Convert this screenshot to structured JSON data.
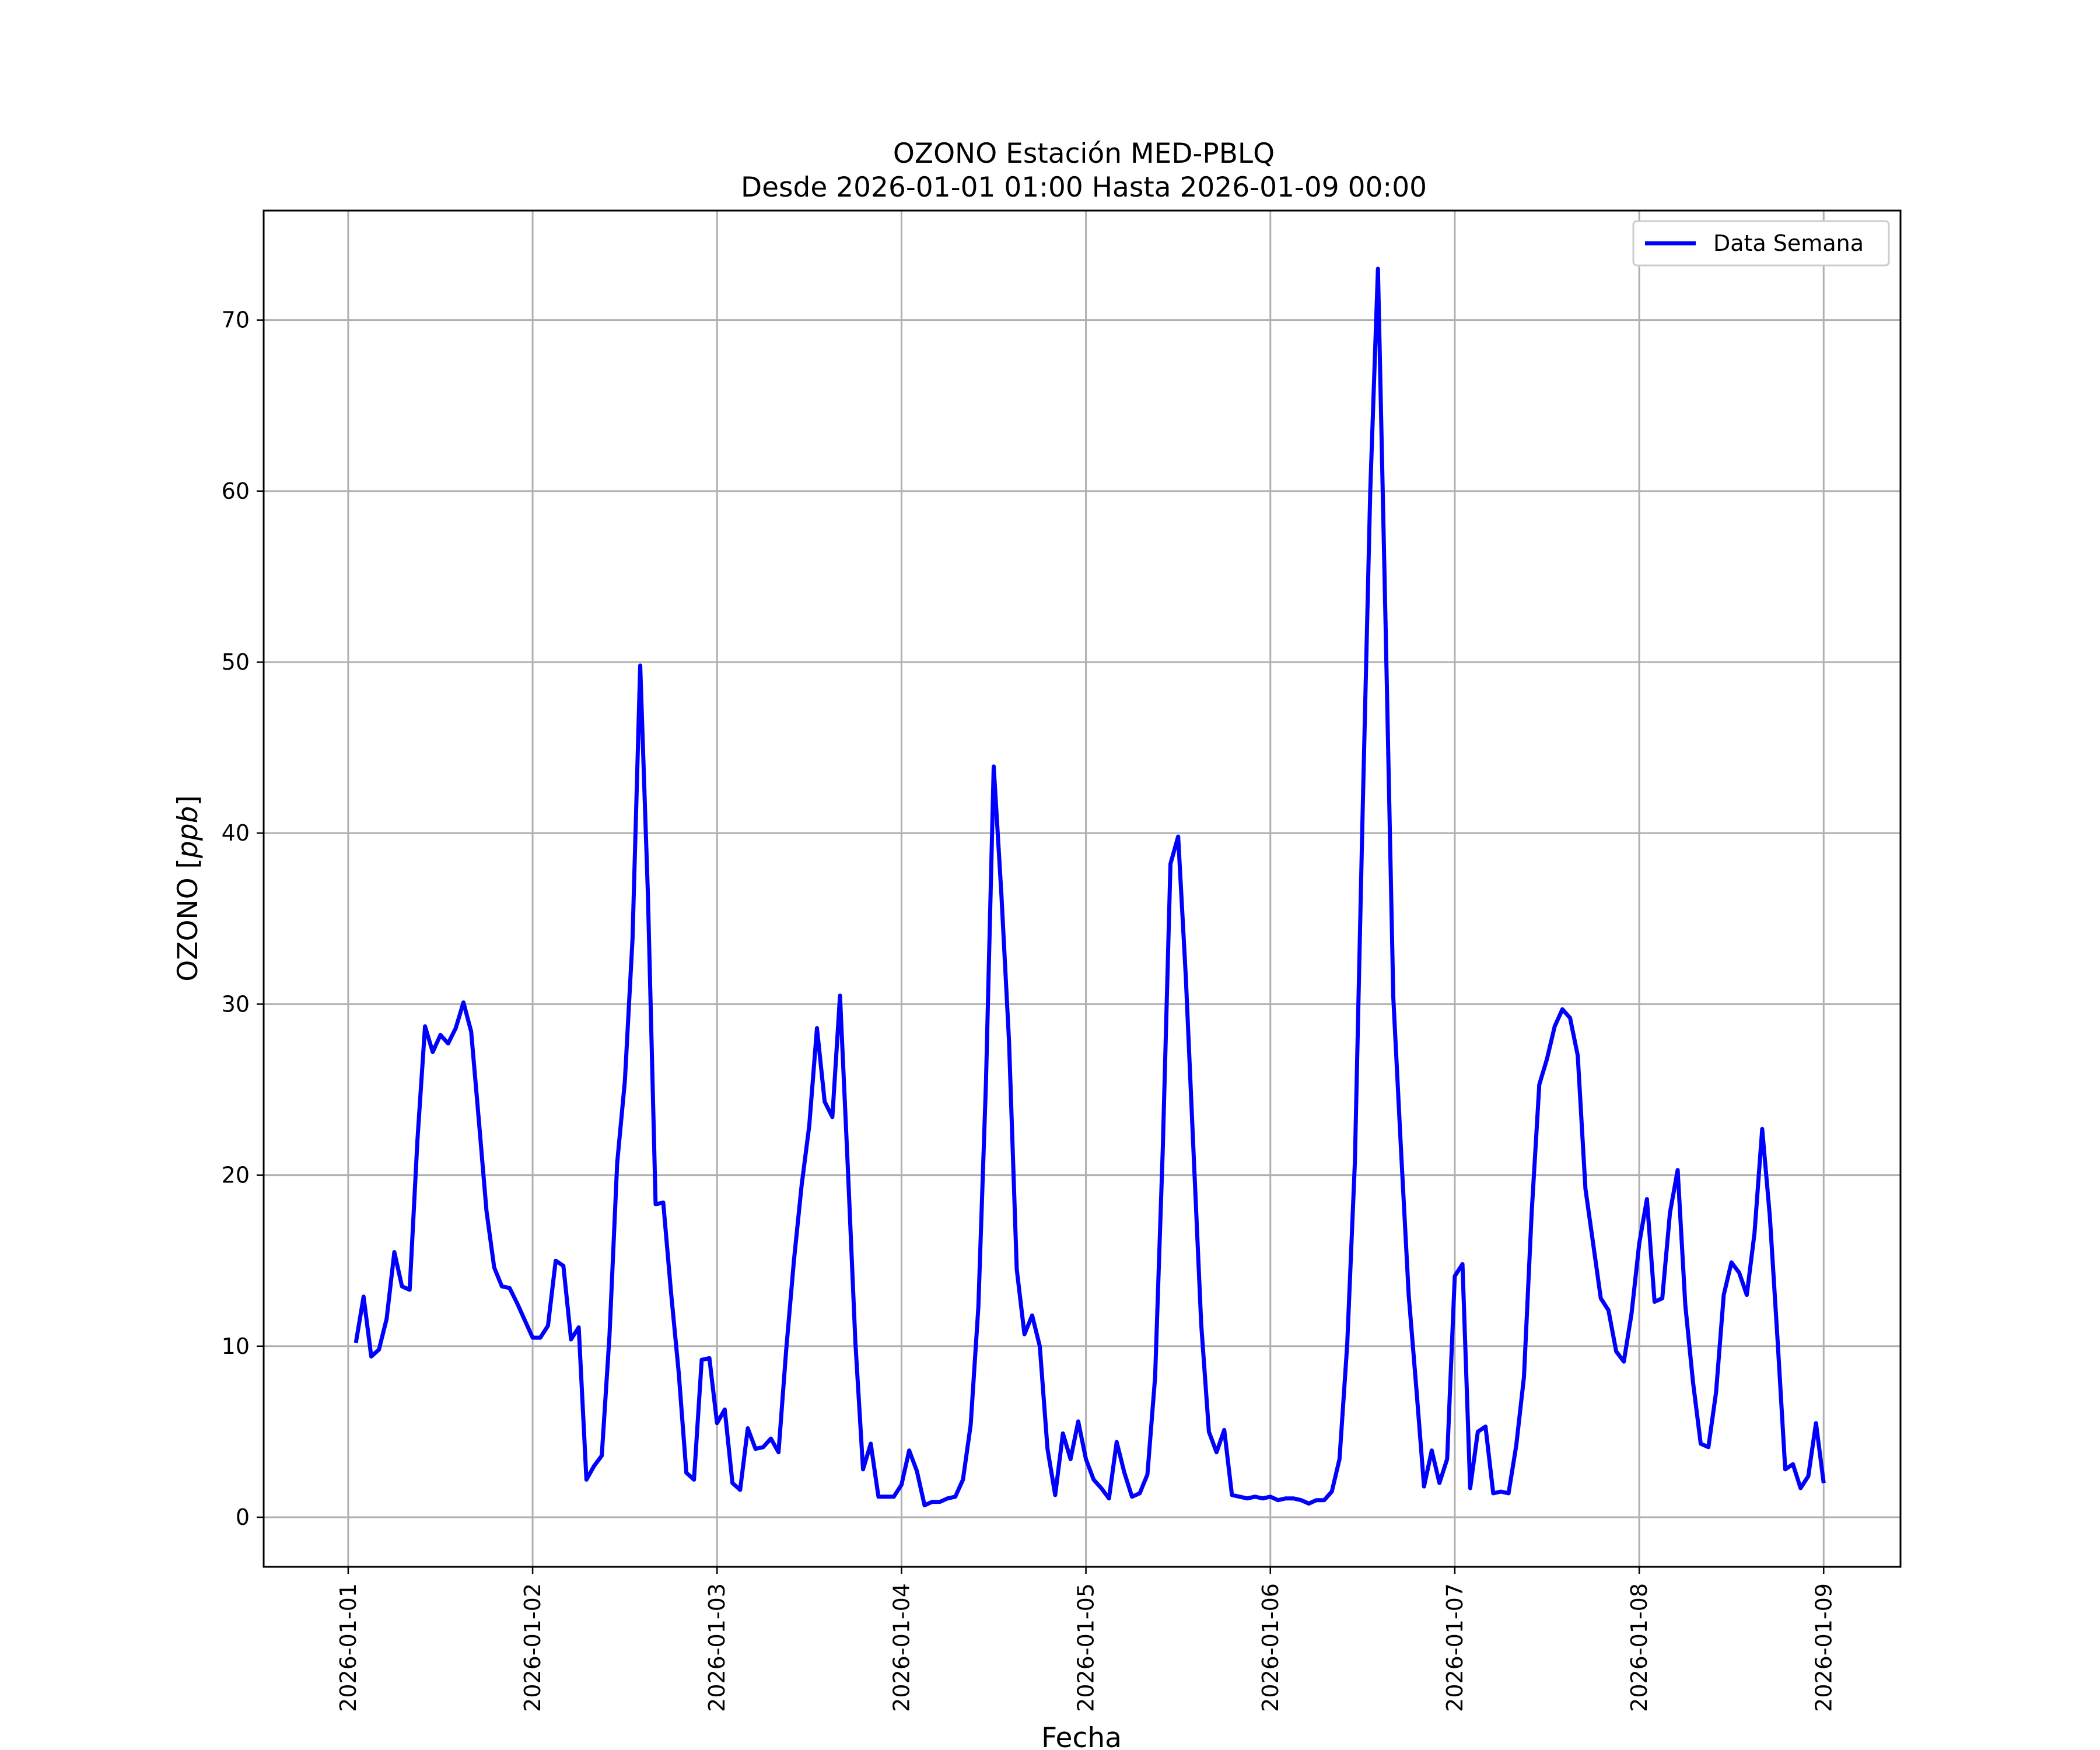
{
  "chart_data": {
    "type": "line",
    "title": "OZONO Estación MED-PBLQ",
    "subtitle": "Desde 2026-01-01 01:00 Hasta 2026-01-09 00:00",
    "xlabel": "Fecha",
    "ylabel": "OZONO [ppb]",
    "xlim": [
      "2025-12-31 13:00",
      "2026-01-09 10:00"
    ],
    "ylim": [
      -2.9,
      76.4
    ],
    "x_ticks": [
      "2026-01-01",
      "2026-01-02",
      "2026-01-03",
      "2026-01-04",
      "2026-01-05",
      "2026-01-06",
      "2026-01-07",
      "2026-01-08",
      "2026-01-09"
    ],
    "y_ticks": [
      0,
      10,
      20,
      30,
      40,
      50,
      60,
      70
    ],
    "grid": true,
    "legend": {
      "position": "top-right",
      "entries": [
        "Data Semana"
      ]
    },
    "series": [
      {
        "name": "Data Semana",
        "color": "#0000ff",
        "points": [
          [
            "2026-01-01 01:00",
            10.2
          ],
          [
            "2026-01-01 02:00",
            12.9
          ],
          [
            "2026-01-01 03:00",
            9.4
          ],
          [
            "2026-01-01 04:00",
            9.8
          ],
          [
            "2026-01-01 05:00",
            11.6
          ],
          [
            "2026-01-01 06:00",
            15.5
          ],
          [
            "2026-01-01 07:00",
            13.5
          ],
          [
            "2026-01-01 08:00",
            13.3
          ],
          [
            "2026-01-01 09:00",
            22.0
          ],
          [
            "2026-01-01 10:00",
            28.7
          ],
          [
            "2026-01-01 11:00",
            27.2
          ],
          [
            "2026-01-01 12:00",
            28.2
          ],
          [
            "2026-01-01 13:00",
            27.7
          ],
          [
            "2026-01-01 14:00",
            28.6
          ],
          [
            "2026-01-01 15:00",
            30.1
          ],
          [
            "2026-01-01 16:00",
            28.4
          ],
          [
            "2026-01-01 17:00",
            23.2
          ],
          [
            "2026-01-01 18:00",
            17.9
          ],
          [
            "2026-01-01 19:00",
            14.6
          ],
          [
            "2026-01-01 20:00",
            13.5
          ],
          [
            "2026-01-01 21:00",
            13.4
          ],
          [
            "2026-01-01 22:00",
            12.5
          ],
          [
            "2026-01-01 23:00",
            11.5
          ],
          [
            "2026-01-02 00:00",
            10.5
          ],
          [
            "2026-01-02 01:00",
            10.5
          ],
          [
            "2026-01-02 02:00",
            11.2
          ],
          [
            "2026-01-02 03:00",
            15.0
          ],
          [
            "2026-01-02 04:00",
            14.7
          ],
          [
            "2026-01-02 05:00",
            10.4
          ],
          [
            "2026-01-02 06:00",
            11.1
          ],
          [
            "2026-01-02 07:00",
            2.2
          ],
          [
            "2026-01-02 08:00",
            3.0
          ],
          [
            "2026-01-02 09:00",
            3.6
          ],
          [
            "2026-01-02 10:00",
            10.6
          ],
          [
            "2026-01-02 11:00",
            20.7
          ],
          [
            "2026-01-02 12:00",
            25.5
          ],
          [
            "2026-01-02 13:00",
            33.8
          ],
          [
            "2026-01-02 14:00",
            49.8
          ],
          [
            "2026-01-02 15:00",
            36.4
          ],
          [
            "2026-01-02 16:00",
            18.3
          ],
          [
            "2026-01-02 17:00",
            18.4
          ],
          [
            "2026-01-02 18:00",
            13.2
          ],
          [
            "2026-01-02 19:00",
            8.5
          ],
          [
            "2026-01-02 20:00",
            2.6
          ],
          [
            "2026-01-02 21:00",
            2.2
          ],
          [
            "2026-01-02 22:00",
            9.2
          ],
          [
            "2026-01-02 23:00",
            9.3
          ],
          [
            "2026-01-03 00:00",
            5.5
          ],
          [
            "2026-01-03 01:00",
            6.3
          ],
          [
            "2026-01-03 02:00",
            2.0
          ],
          [
            "2026-01-03 03:00",
            1.6
          ],
          [
            "2026-01-03 04:00",
            5.2
          ],
          [
            "2026-01-03 05:00",
            4.0
          ],
          [
            "2026-01-03 06:00",
            4.1
          ],
          [
            "2026-01-03 07:00",
            4.6
          ],
          [
            "2026-01-03 08:00",
            3.8
          ],
          [
            "2026-01-03 09:00",
            9.8
          ],
          [
            "2026-01-03 10:00",
            15.0
          ],
          [
            "2026-01-03 11:00",
            19.4
          ],
          [
            "2026-01-03 12:00",
            22.9
          ],
          [
            "2026-01-03 13:00",
            28.6
          ],
          [
            "2026-01-03 14:00",
            24.3
          ],
          [
            "2026-01-03 15:00",
            23.4
          ],
          [
            "2026-01-03 16:00",
            30.5
          ],
          [
            "2026-01-03 17:00",
            20.6
          ],
          [
            "2026-01-03 18:00",
            10.2
          ],
          [
            "2026-01-03 19:00",
            2.8
          ],
          [
            "2026-01-03 20:00",
            4.3
          ],
          [
            "2026-01-03 21:00",
            1.2
          ],
          [
            "2026-01-03 22:00",
            1.2
          ],
          [
            "2026-01-03 23:00",
            1.2
          ],
          [
            "2026-01-04 00:00",
            1.9
          ],
          [
            "2026-01-04 01:00",
            3.9
          ],
          [
            "2026-01-04 02:00",
            2.7
          ],
          [
            "2026-01-04 03:00",
            0.7
          ],
          [
            "2026-01-04 04:00",
            0.9
          ],
          [
            "2026-01-04 05:00",
            0.9
          ],
          [
            "2026-01-04 06:00",
            1.1
          ],
          [
            "2026-01-04 07:00",
            1.2
          ],
          [
            "2026-01-04 08:00",
            2.2
          ],
          [
            "2026-01-04 09:00",
            5.4
          ],
          [
            "2026-01-04 10:00",
            12.3
          ],
          [
            "2026-01-04 11:00",
            25.5
          ],
          [
            "2026-01-04 12:00",
            43.9
          ],
          [
            "2026-01-04 13:00",
            36.4
          ],
          [
            "2026-01-04 14:00",
            27.8
          ],
          [
            "2026-01-04 15:00",
            14.5
          ],
          [
            "2026-01-04 16:00",
            10.7
          ],
          [
            "2026-01-04 17:00",
            11.8
          ],
          [
            "2026-01-04 18:00",
            10.0
          ],
          [
            "2026-01-04 19:00",
            4.0
          ],
          [
            "2026-01-04 20:00",
            1.3
          ],
          [
            "2026-01-04 21:00",
            4.9
          ],
          [
            "2026-01-04 22:00",
            3.4
          ],
          [
            "2026-01-04 23:00",
            5.6
          ],
          [
            "2026-01-05 00:00",
            3.4
          ],
          [
            "2026-01-05 01:00",
            2.2
          ],
          [
            "2026-01-05 02:00",
            1.7
          ],
          [
            "2026-01-05 03:00",
            1.1
          ],
          [
            "2026-01-05 04:00",
            4.4
          ],
          [
            "2026-01-05 05:00",
            2.6
          ],
          [
            "2026-01-05 06:00",
            1.2
          ],
          [
            "2026-01-05 07:00",
            1.4
          ],
          [
            "2026-01-05 08:00",
            2.5
          ],
          [
            "2026-01-05 09:00",
            8.2
          ],
          [
            "2026-01-05 10:00",
            21.5
          ],
          [
            "2026-01-05 11:00",
            38.2
          ],
          [
            "2026-01-05 12:00",
            39.8
          ],
          [
            "2026-01-05 13:00",
            31.6
          ],
          [
            "2026-01-05 14:00",
            21.4
          ],
          [
            "2026-01-05 15:00",
            11.3
          ],
          [
            "2026-01-05 16:00",
            5.0
          ],
          [
            "2026-01-05 17:00",
            3.8
          ],
          [
            "2026-01-05 18:00",
            5.1
          ],
          [
            "2026-01-05 19:00",
            1.3
          ],
          [
            "2026-01-05 20:00",
            1.2
          ],
          [
            "2026-01-05 21:00",
            1.1
          ],
          [
            "2026-01-05 22:00",
            1.2
          ],
          [
            "2026-01-05 23:00",
            1.1
          ],
          [
            "2026-01-06 00:00",
            1.2
          ],
          [
            "2026-01-06 01:00",
            1.0
          ],
          [
            "2026-01-06 02:00",
            1.1
          ],
          [
            "2026-01-06 03:00",
            1.1
          ],
          [
            "2026-01-06 04:00",
            1.0
          ],
          [
            "2026-01-06 05:00",
            0.8
          ],
          [
            "2026-01-06 06:00",
            1.0
          ],
          [
            "2026-01-06 07:00",
            1.0
          ],
          [
            "2026-01-06 08:00",
            1.5
          ],
          [
            "2026-01-06 09:00",
            3.4
          ],
          [
            "2026-01-06 10:00",
            10.1
          ],
          [
            "2026-01-06 11:00",
            20.8
          ],
          [
            "2026-01-06 12:00",
            41.0
          ],
          [
            "2026-01-06 13:00",
            60.0
          ],
          [
            "2026-01-06 14:00",
            73.0
          ],
          [
            "2026-01-06 15:00",
            52.0
          ],
          [
            "2026-01-06 16:00",
            30.4
          ],
          [
            "2026-01-06 17:00",
            21.5
          ],
          [
            "2026-01-06 18:00",
            13.0
          ],
          [
            "2026-01-06 19:00",
            7.5
          ],
          [
            "2026-01-06 20:00",
            1.8
          ],
          [
            "2026-01-06 21:00",
            3.9
          ],
          [
            "2026-01-06 22:00",
            2.0
          ],
          [
            "2026-01-06 23:00",
            3.4
          ],
          [
            "2026-01-07 00:00",
            14.1
          ],
          [
            "2026-01-07 01:00",
            14.8
          ],
          [
            "2026-01-07 02:00",
            1.7
          ],
          [
            "2026-01-07 03:00",
            5.0
          ],
          [
            "2026-01-07 04:00",
            5.3
          ],
          [
            "2026-01-07 05:00",
            1.4
          ],
          [
            "2026-01-07 06:00",
            1.5
          ],
          [
            "2026-01-07 07:00",
            1.4
          ],
          [
            "2026-01-07 08:00",
            4.2
          ],
          [
            "2026-01-07 09:00",
            8.2
          ],
          [
            "2026-01-07 10:00",
            17.8
          ],
          [
            "2026-01-07 11:00",
            25.3
          ],
          [
            "2026-01-07 12:00",
            26.8
          ],
          [
            "2026-01-07 13:00",
            28.7
          ],
          [
            "2026-01-07 14:00",
            29.7
          ],
          [
            "2026-01-07 15:00",
            29.2
          ],
          [
            "2026-01-07 16:00",
            27.0
          ],
          [
            "2026-01-07 17:00",
            19.2
          ],
          [
            "2026-01-07 18:00",
            16.0
          ],
          [
            "2026-01-07 19:00",
            12.8
          ],
          [
            "2026-01-07 20:00",
            12.1
          ],
          [
            "2026-01-07 21:00",
            9.7
          ],
          [
            "2026-01-07 22:00",
            9.1
          ],
          [
            "2026-01-07 23:00",
            11.9
          ],
          [
            "2026-01-08 00:00",
            16.0
          ],
          [
            "2026-01-08 01:00",
            18.6
          ],
          [
            "2026-01-08 02:00",
            12.6
          ],
          [
            "2026-01-08 03:00",
            12.8
          ],
          [
            "2026-01-08 04:00",
            17.8
          ],
          [
            "2026-01-08 05:00",
            20.3
          ],
          [
            "2026-01-08 06:00",
            12.4
          ],
          [
            "2026-01-08 07:00",
            7.9
          ],
          [
            "2026-01-08 08:00",
            4.3
          ],
          [
            "2026-01-08 09:00",
            4.1
          ],
          [
            "2026-01-08 10:00",
            7.3
          ],
          [
            "2026-01-08 11:00",
            13.0
          ],
          [
            "2026-01-08 12:00",
            14.9
          ],
          [
            "2026-01-08 13:00",
            14.3
          ],
          [
            "2026-01-08 14:00",
            13.0
          ],
          [
            "2026-01-08 15:00",
            16.6
          ],
          [
            "2026-01-08 16:00",
            22.7
          ],
          [
            "2026-01-08 17:00",
            17.6
          ],
          [
            "2026-01-08 18:00",
            10.4
          ],
          [
            "2026-01-08 19:00",
            2.8
          ],
          [
            "2026-01-08 20:00",
            3.1
          ],
          [
            "2026-01-08 21:00",
            1.7
          ],
          [
            "2026-01-08 22:00",
            2.4
          ],
          [
            "2026-01-08 23:00",
            5.5
          ],
          [
            "2026-01-09 00:00",
            2.0
          ]
        ]
      }
    ]
  }
}
